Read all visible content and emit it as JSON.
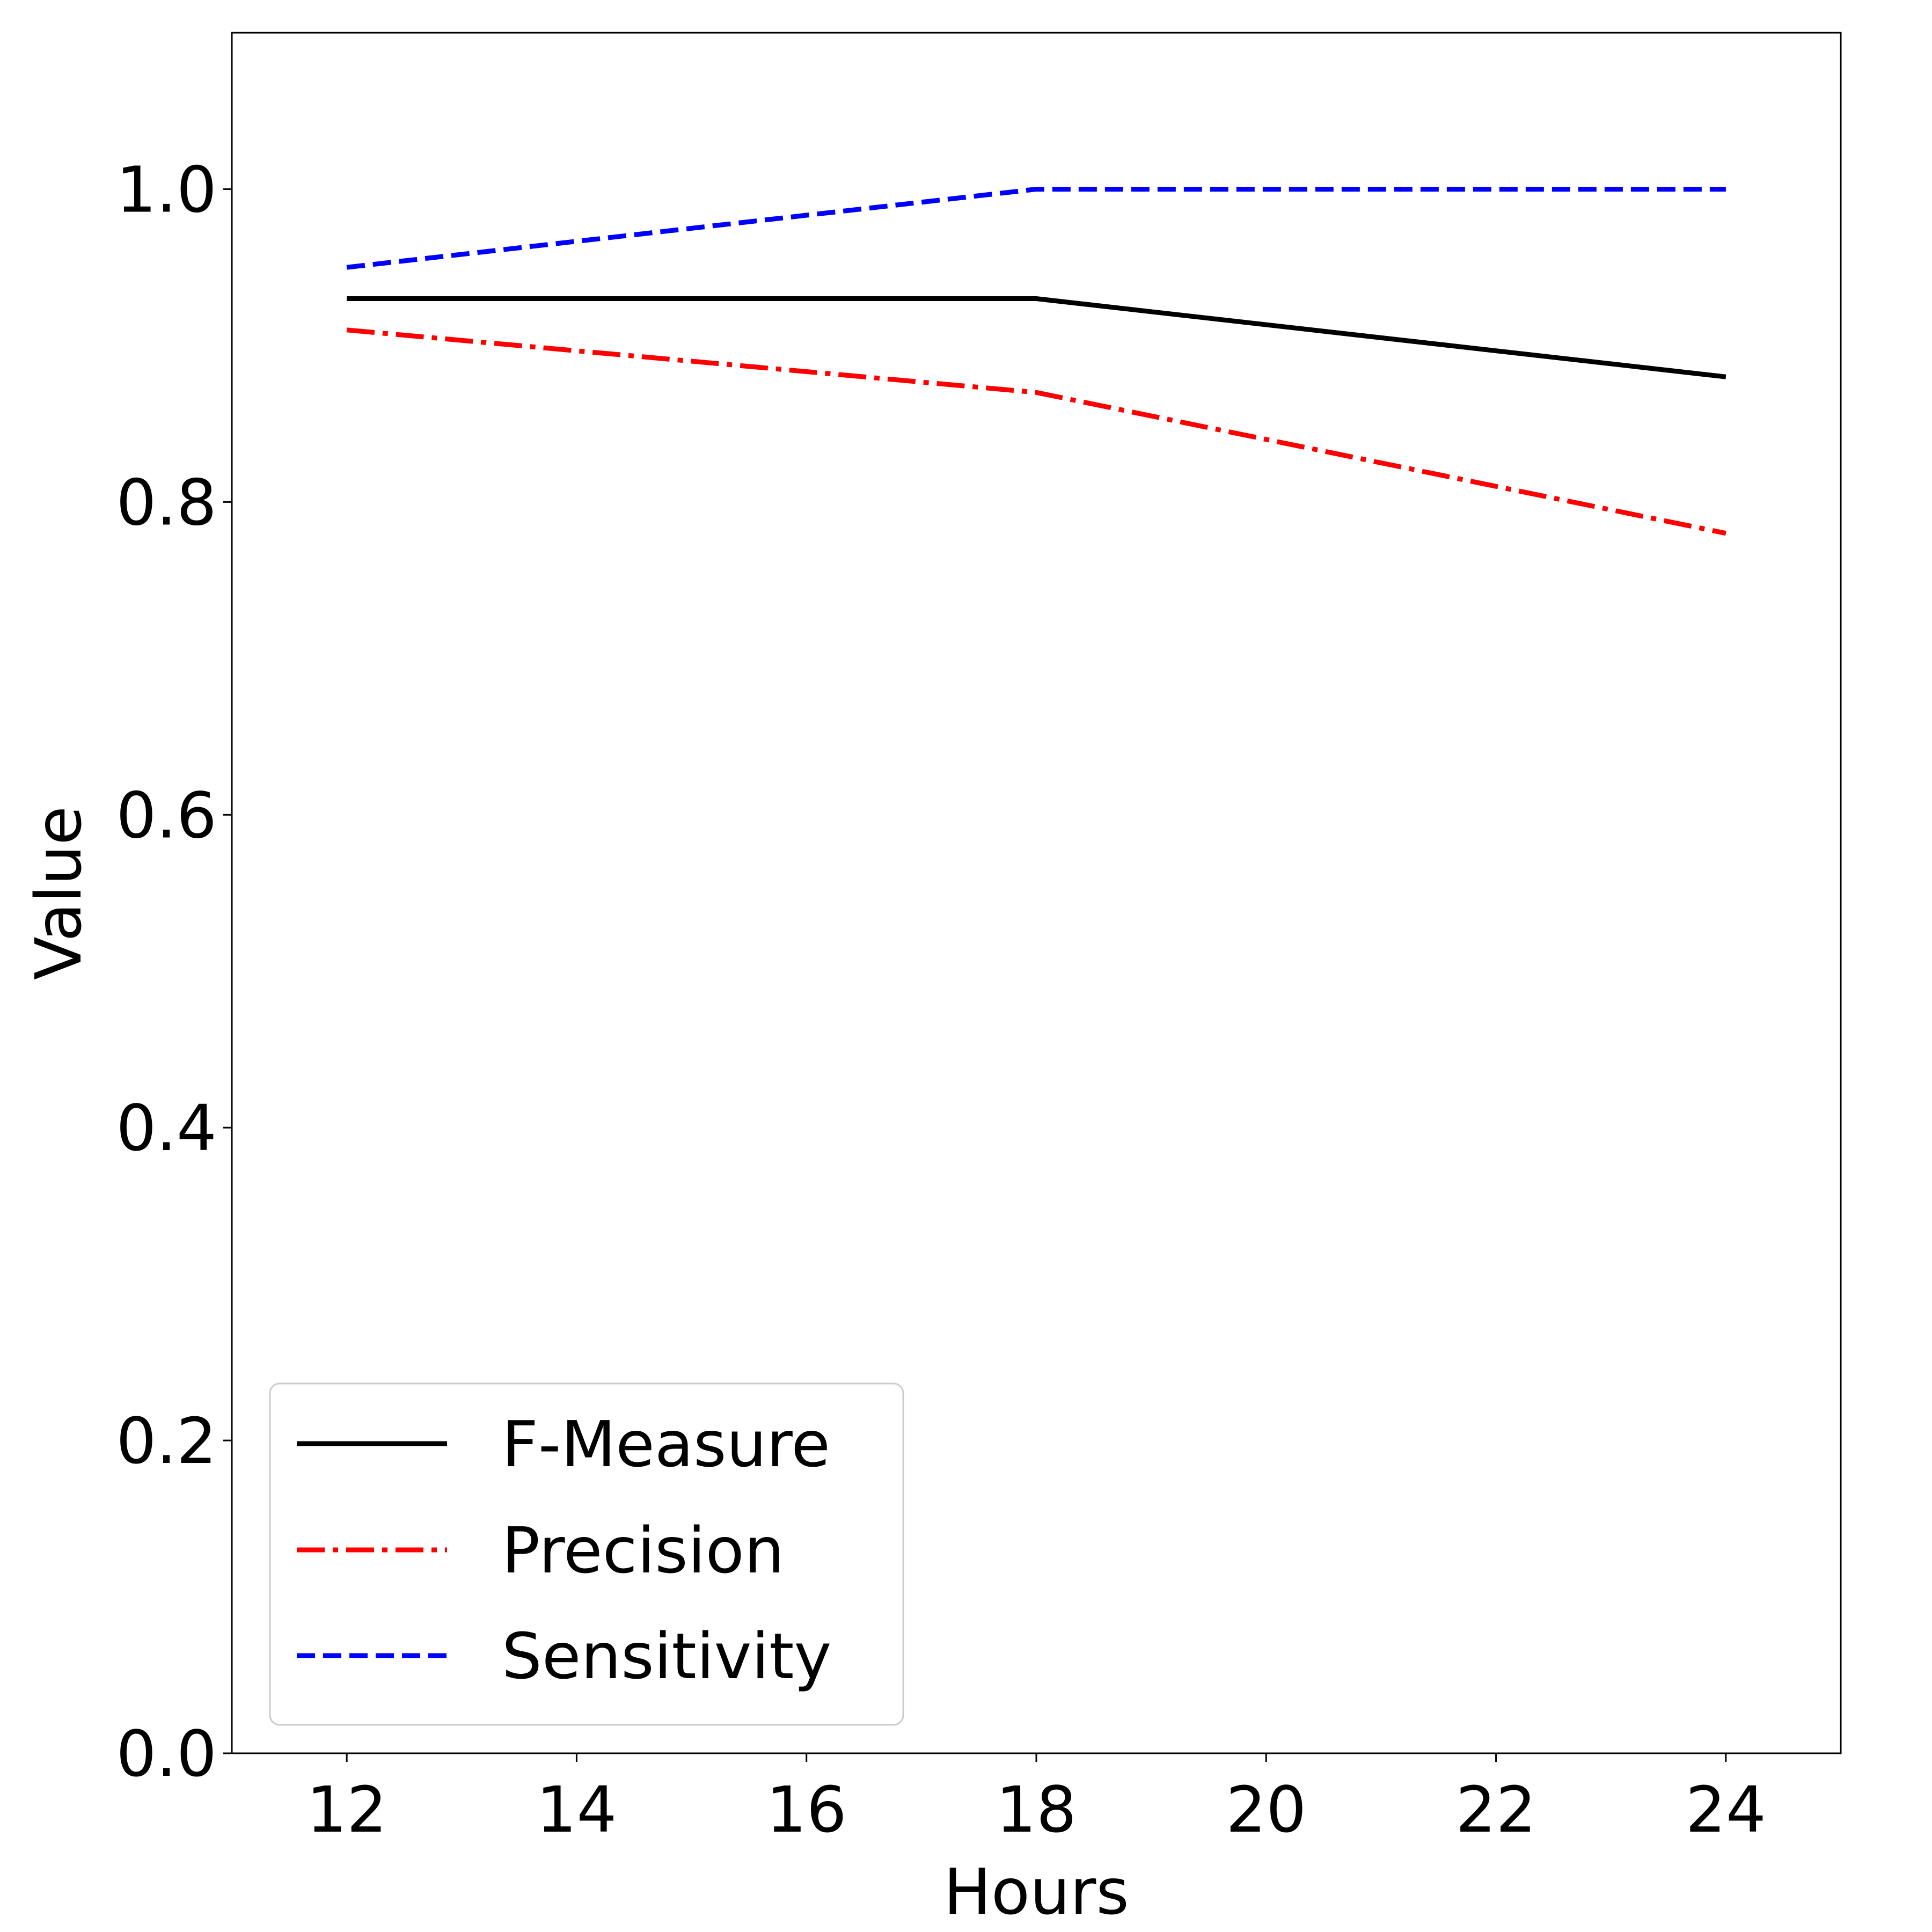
{
  "chart_data": {
    "type": "line",
    "title": "",
    "xlabel": "Hours",
    "ylabel": "Value",
    "x": [
      12,
      18,
      24
    ],
    "xlim": [
      11,
      25
    ],
    "ylim": [
      0,
      1.1
    ],
    "xticks": [
      12,
      14,
      16,
      18,
      20,
      22,
      24
    ],
    "yticks": [
      0.0,
      0.2,
      0.4,
      0.6,
      0.8,
      1.0
    ],
    "xtick_labels": [
      "12",
      "14",
      "16",
      "18",
      "20",
      "22",
      "24"
    ],
    "ytick_labels": [
      "0.0",
      "0.2",
      "0.4",
      "0.6",
      "0.8",
      "1.0"
    ],
    "grid": false,
    "legend_position": "lower-left",
    "series": [
      {
        "name": "F-Measure",
        "values": [
          0.93,
          0.93,
          0.88
        ],
        "color": "#000000",
        "linestyle": "solid"
      },
      {
        "name": "Precision",
        "values": [
          0.91,
          0.87,
          0.78
        ],
        "color": "#ff0000",
        "linestyle": "dashdot"
      },
      {
        "name": "Sensitivity",
        "values": [
          0.95,
          1.0,
          1.0
        ],
        "color": "#0000ff",
        "linestyle": "dashed"
      }
    ]
  }
}
